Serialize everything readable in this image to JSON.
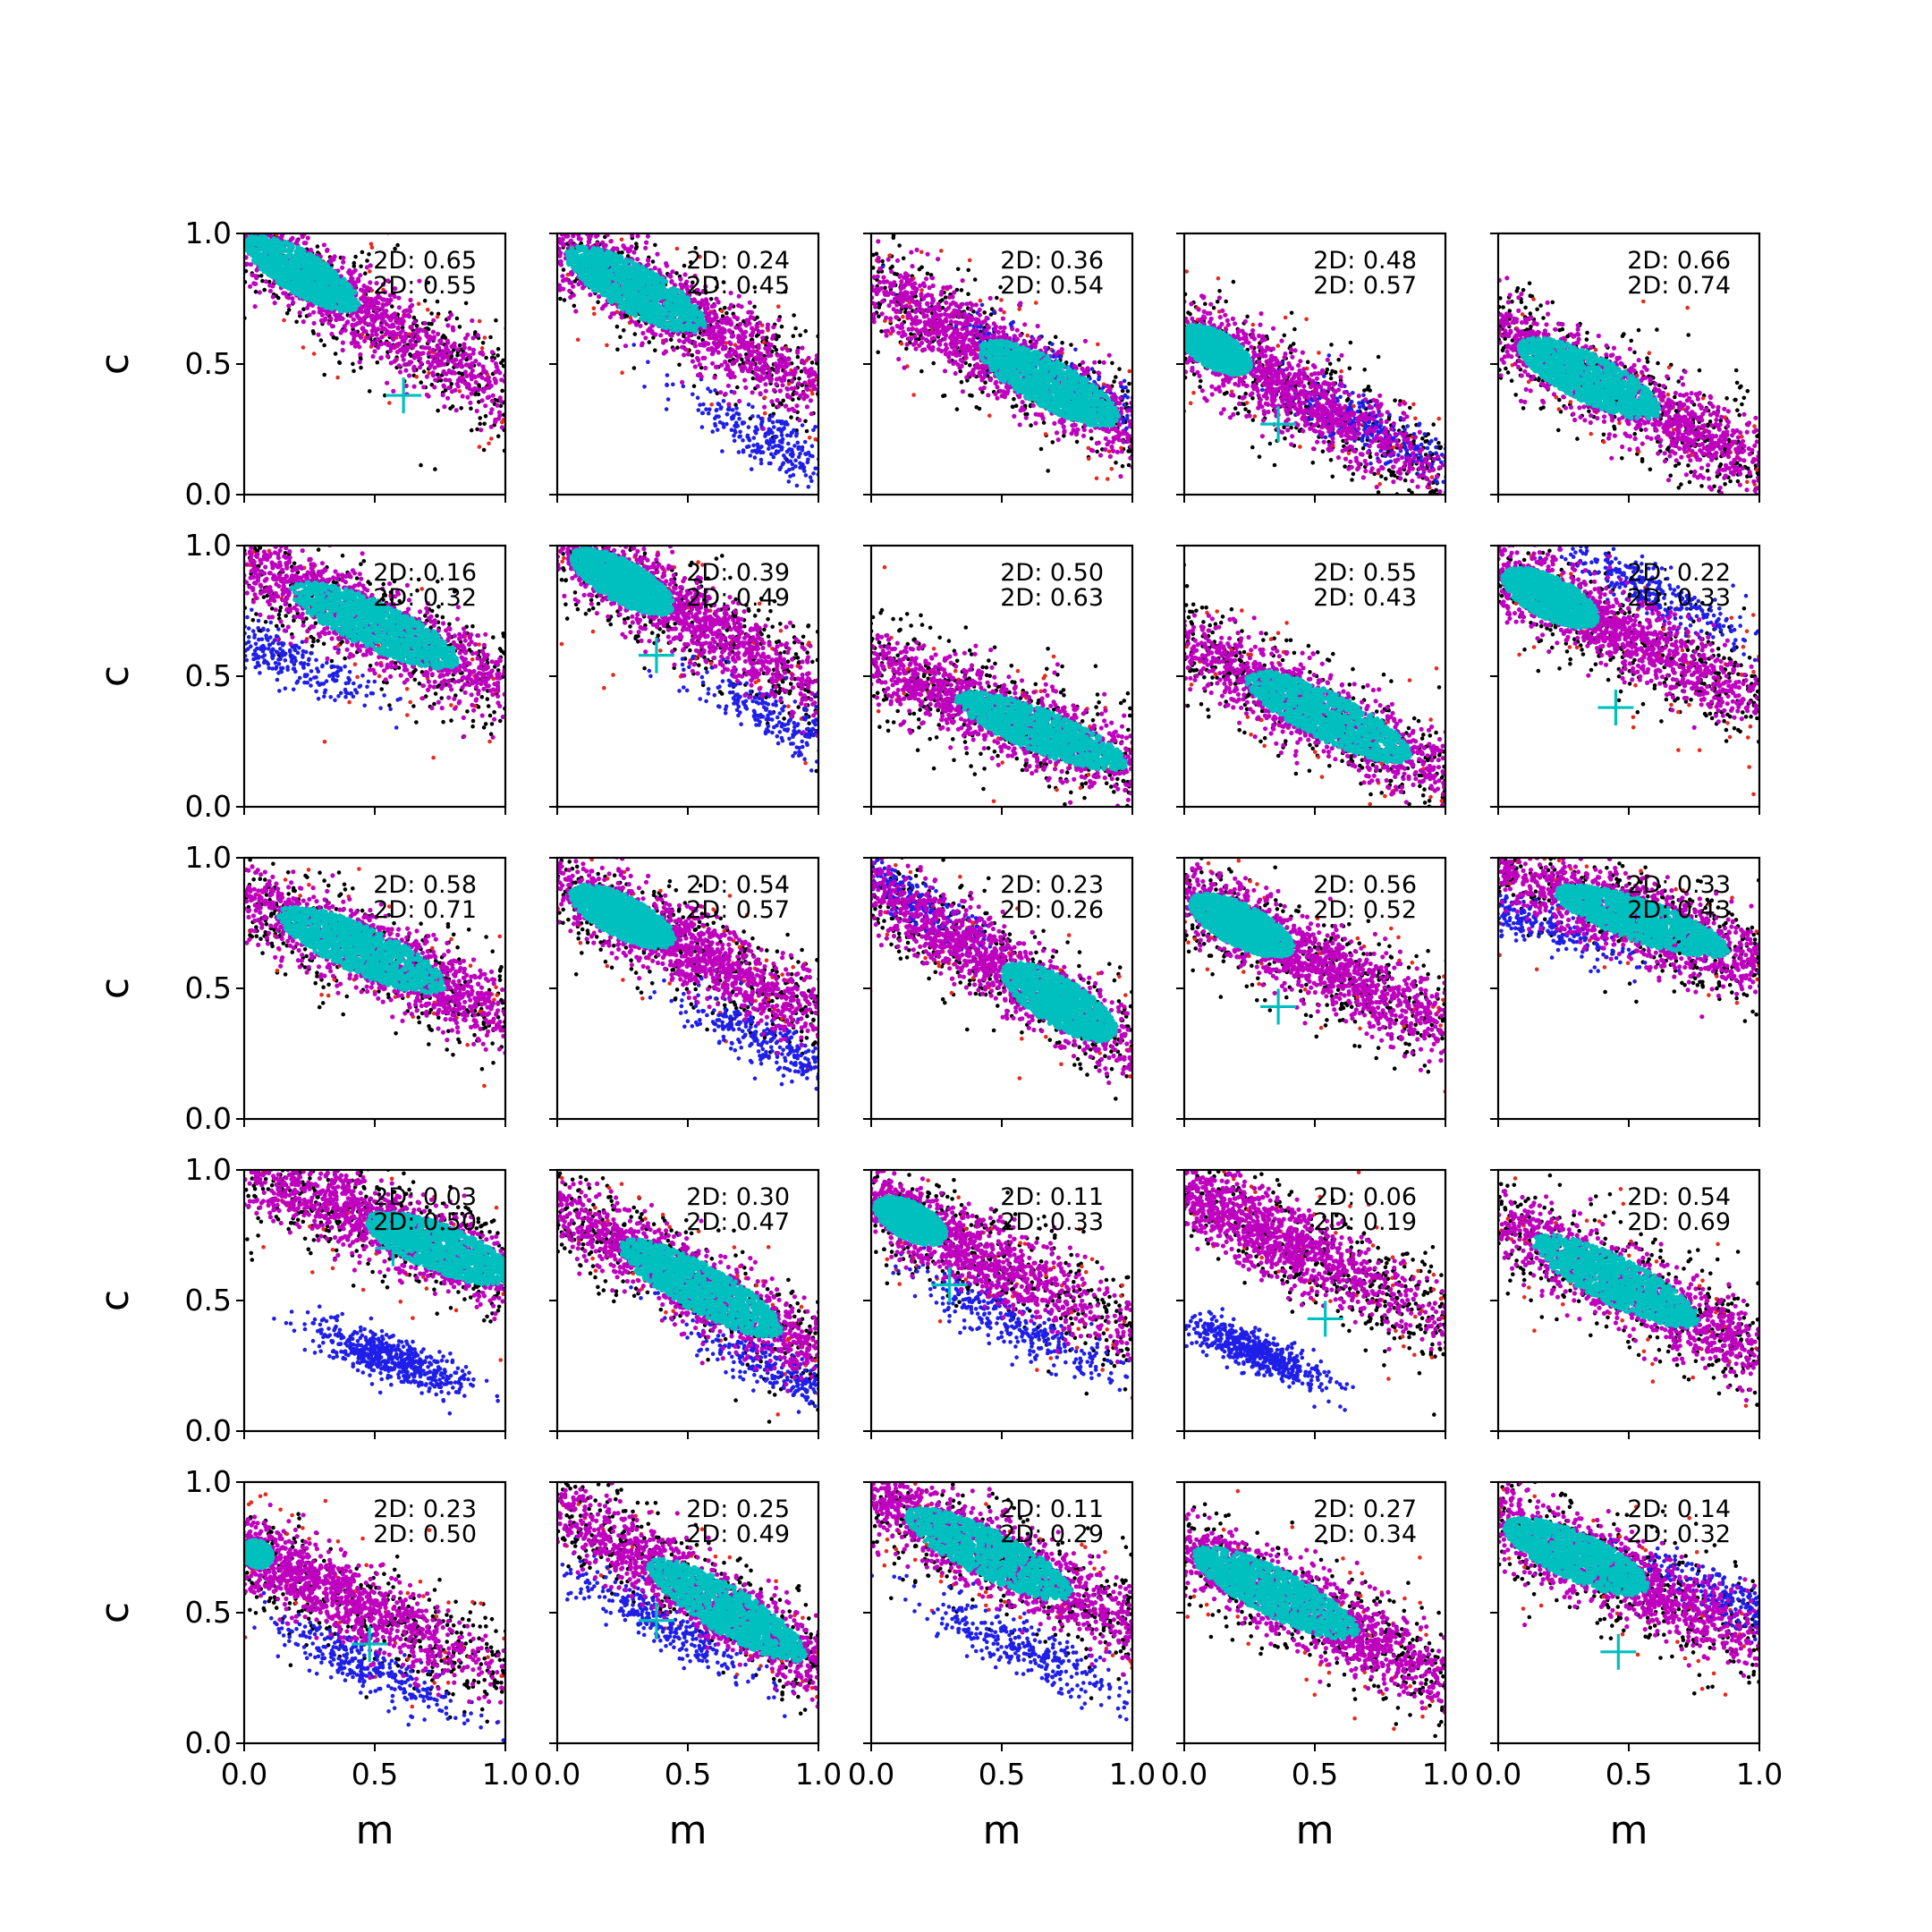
{
  "chart_data": {
    "type": "scatter",
    "layout": "5x5 grid of subplots",
    "xlabel": "m",
    "ylabel": "c",
    "xlim": [
      0.0,
      1.0
    ],
    "ylim": [
      0.0,
      1.0
    ],
    "xticks": [
      "0.0",
      "0.5",
      "1.0"
    ],
    "yticks": [
      "0.0",
      "0.5",
      "1.0"
    ],
    "point_colors": {
      "black": "#000000",
      "red": "#e8291c",
      "blue": "#1f1fe8",
      "magenta": "#bf00bf",
      "cyan": "#00bfbf"
    },
    "marker": "+",
    "marker_color": "#00bfbf",
    "panels": [
      {
        "stat1": "2D: 0.65",
        "stat2": "2D: 0.55",
        "slope": -0.6,
        "intercept": 0.98,
        "magenta_cx": 0.35,
        "cyan_cx": 0.22,
        "cyan_rx": 0.25,
        "cyan_ry": 0.08,
        "blue_off": 0,
        "blue_cx": 0.5,
        "marker": [
          0.61,
          0.38
        ]
      },
      {
        "stat1": "2D: 0.24",
        "stat2": "2D: 0.45",
        "slope": -0.55,
        "intercept": 0.95,
        "magenta_cx": 0.4,
        "cyan_cx": 0.3,
        "cyan_rx": 0.3,
        "cyan_ry": 0.09,
        "blue_off": -0.3,
        "blue_cx": 0.85,
        "marker": null
      },
      {
        "stat1": "2D: 0.36",
        "stat2": "2D: 0.54",
        "slope": -0.55,
        "intercept": 0.8,
        "magenta_cx": 0.5,
        "cyan_cx": 0.68,
        "cyan_rx": 0.3,
        "cyan_ry": 0.09,
        "blue_off": 0.05,
        "blue_cx": 0.7,
        "marker": null
      },
      {
        "stat1": "2D: 0.48",
        "stat2": "2D: 0.57",
        "slope": -0.55,
        "intercept": 0.62,
        "magenta_cx": 0.3,
        "cyan_cx": 0.12,
        "cyan_rx": 0.15,
        "cyan_ry": 0.07,
        "blue_off": 0.02,
        "blue_cx": 0.7,
        "marker": [
          0.36,
          0.27
        ]
      },
      {
        "stat1": "2D: 0.66",
        "stat2": "2D: 0.74",
        "slope": -0.5,
        "intercept": 0.62,
        "magenta_cx": 0.45,
        "cyan_cx": 0.35,
        "cyan_rx": 0.3,
        "cyan_ry": 0.09,
        "blue_off": 0,
        "blue_cx": 0.5,
        "marker": null
      },
      {
        "stat1": "2D: 0.16",
        "stat2": "2D: 0.32",
        "slope": -0.45,
        "intercept": 0.92,
        "magenta_cx": 0.45,
        "cyan_cx": 0.5,
        "cyan_rx": 0.35,
        "cyan_ry": 0.09,
        "blue_off": -0.28,
        "blue_cx": 0.12,
        "marker": null
      },
      {
        "stat1": "2D: 0.39",
        "stat2": "2D: 0.49",
        "slope": -0.55,
        "intercept": 1.0,
        "magenta_cx": 0.4,
        "cyan_cx": 0.25,
        "cyan_rx": 0.22,
        "cyan_ry": 0.08,
        "blue_off": -0.2,
        "blue_cx": 0.9,
        "marker": [
          0.38,
          0.58
        ]
      },
      {
        "stat1": "2D: 0.50",
        "stat2": "2D: 0.63",
        "slope": -0.4,
        "intercept": 0.55,
        "magenta_cx": 0.5,
        "cyan_cx": 0.65,
        "cyan_rx": 0.35,
        "cyan_ry": 0.08,
        "blue_off": 0,
        "blue_cx": 0.5,
        "marker": null
      },
      {
        "stat1": "2D: 0.55",
        "stat2": "2D: 0.43",
        "slope": -0.5,
        "intercept": 0.62,
        "magenta_cx": 0.5,
        "cyan_cx": 0.55,
        "cyan_rx": 0.35,
        "cyan_ry": 0.09,
        "blue_off": 0,
        "blue_cx": 0.5,
        "marker": null
      },
      {
        "stat1": "2D: 0.22",
        "stat2": "2D: 0.33",
        "slope": -0.5,
        "intercept": 0.9,
        "magenta_cx": 0.35,
        "cyan_cx": 0.2,
        "cyan_rx": 0.2,
        "cyan_ry": 0.08,
        "blue_off": 0.22,
        "blue_cx": 0.6,
        "marker": [
          0.45,
          0.38
        ]
      },
      {
        "stat1": "2D: 0.58",
        "stat2": "2D: 0.71",
        "slope": -0.45,
        "intercept": 0.85,
        "magenta_cx": 0.5,
        "cyan_cx": 0.45,
        "cyan_rx": 0.35,
        "cyan_ry": 0.09,
        "blue_off": 0,
        "blue_cx": 0.5,
        "marker": null
      },
      {
        "stat1": "2D: 0.54",
        "stat2": "2D: 0.57",
        "slope": -0.5,
        "intercept": 0.9,
        "magenta_cx": 0.45,
        "cyan_cx": 0.25,
        "cyan_rx": 0.22,
        "cyan_ry": 0.08,
        "blue_off": -0.2,
        "blue_cx": 0.85,
        "marker": null
      },
      {
        "stat1": "2D: 0.23",
        "stat2": "2D: 0.26",
        "slope": -0.6,
        "intercept": 0.88,
        "magenta_cx": 0.5,
        "cyan_cx": 0.72,
        "cyan_rx": 0.25,
        "cyan_ry": 0.09,
        "blue_off": 0.05,
        "blue_cx": 0.1,
        "marker": null
      },
      {
        "stat1": "2D: 0.56",
        "stat2": "2D: 0.52",
        "slope": -0.5,
        "intercept": 0.85,
        "magenta_cx": 0.45,
        "cyan_cx": 0.22,
        "cyan_rx": 0.22,
        "cyan_ry": 0.08,
        "blue_off": 0,
        "blue_cx": 0.5,
        "marker": [
          0.36,
          0.43
        ]
      },
      {
        "stat1": "2D: 0.33",
        "stat2": "2D: 0.43",
        "slope": -0.35,
        "intercept": 0.95,
        "magenta_cx": 0.5,
        "cyan_cx": 0.55,
        "cyan_rx": 0.35,
        "cyan_ry": 0.08,
        "blue_off": -0.15,
        "blue_cx": 0.1,
        "marker": null
      },
      {
        "stat1": "2D: 0.03",
        "stat2": "2D: 0.50",
        "slope": -0.4,
        "intercept": 1.0,
        "magenta_cx": 0.6,
        "cyan_cx": 0.75,
        "cyan_rx": 0.3,
        "cyan_ry": 0.09,
        "blue_off": 0,
        "blue_cx": 0.5,
        "marker": [
          0.57,
          0.7
        ],
        "blue_override": {
          "cx": 0.55,
          "cy": 0.28,
          "rx": 0.32,
          "ry": 0.08,
          "angle": -0.35
        }
      },
      {
        "stat1": "2D: 0.30",
        "stat2": "2D: 0.47",
        "slope": -0.55,
        "intercept": 0.85,
        "magenta_cx": 0.5,
        "cyan_cx": 0.55,
        "cyan_rx": 0.35,
        "cyan_ry": 0.09,
        "blue_off": -0.15,
        "blue_cx": 0.85,
        "marker": null
      },
      {
        "stat1": "2D: 0.11",
        "stat2": "2D: 0.33",
        "slope": -0.5,
        "intercept": 0.88,
        "magenta_cx": 0.25,
        "cyan_cx": 0.15,
        "cyan_rx": 0.15,
        "cyan_ry": 0.07,
        "blue_off": -0.2,
        "blue_cx": 0.55,
        "marker": [
          0.3,
          0.56
        ]
      },
      {
        "stat1": "2D: 0.06",
        "stat2": "2D: 0.19",
        "slope": -0.5,
        "intercept": 0.92,
        "magenta_cx": 0.25,
        "cyan_cx": 0.3,
        "cyan_rx": 0.0,
        "cyan_ry": 0.0,
        "blue_off": 0,
        "blue_cx": 0.5,
        "marker": [
          0.54,
          0.43
        ],
        "blue_override": {
          "cx": 0.28,
          "cy": 0.3,
          "rx": 0.3,
          "ry": 0.07,
          "angle": -0.4
        }
      },
      {
        "stat1": "2D: 0.54",
        "stat2": "2D: 0.69",
        "slope": -0.5,
        "intercept": 0.8,
        "magenta_cx": 0.5,
        "cyan_cx": 0.45,
        "cyan_rx": 0.35,
        "cyan_ry": 0.09,
        "blue_off": 0,
        "blue_cx": 0.5,
        "marker": null
      },
      {
        "stat1": "2D: 0.23",
        "stat2": "2D: 0.50",
        "slope": -0.5,
        "intercept": 0.75,
        "magenta_cx": 0.25,
        "cyan_cx": 0.05,
        "cyan_rx": 0.06,
        "cyan_ry": 0.05,
        "blue_off": -0.22,
        "blue_cx": 0.45,
        "marker": [
          0.48,
          0.38
        ]
      },
      {
        "stat1": "2D: 0.25",
        "stat2": "2D: 0.49",
        "slope": -0.6,
        "intercept": 0.9,
        "magenta_cx": 0.55,
        "cyan_cx": 0.65,
        "cyan_rx": 0.35,
        "cyan_ry": 0.09,
        "blue_off": -0.2,
        "blue_cx": 0.4,
        "marker": [
          0.38,
          0.47
        ]
      },
      {
        "stat1": "2D: 0.11",
        "stat2": "2D: 0.29",
        "slope": -0.5,
        "intercept": 0.95,
        "magenta_cx": 0.45,
        "cyan_cx": 0.45,
        "cyan_rx": 0.35,
        "cyan_ry": 0.09,
        "blue_off": -0.3,
        "blue_cx": 0.6,
        "marker": null
      },
      {
        "stat1": "2D: 0.27",
        "stat2": "2D: 0.34",
        "slope": -0.5,
        "intercept": 0.75,
        "magenta_cx": 0.45,
        "cyan_cx": 0.35,
        "cyan_rx": 0.35,
        "cyan_ry": 0.09,
        "blue_off": 0,
        "blue_cx": 0.5,
        "marker": null
      },
      {
        "stat1": "2D: 0.14",
        "stat2": "2D: 0.32",
        "slope": -0.45,
        "intercept": 0.85,
        "magenta_cx": 0.4,
        "cyan_cx": 0.3,
        "cyan_rx": 0.3,
        "cyan_ry": 0.09,
        "blue_off": 0.1,
        "blue_cx": 0.88,
        "marker": [
          0.46,
          0.35
        ]
      }
    ]
  }
}
